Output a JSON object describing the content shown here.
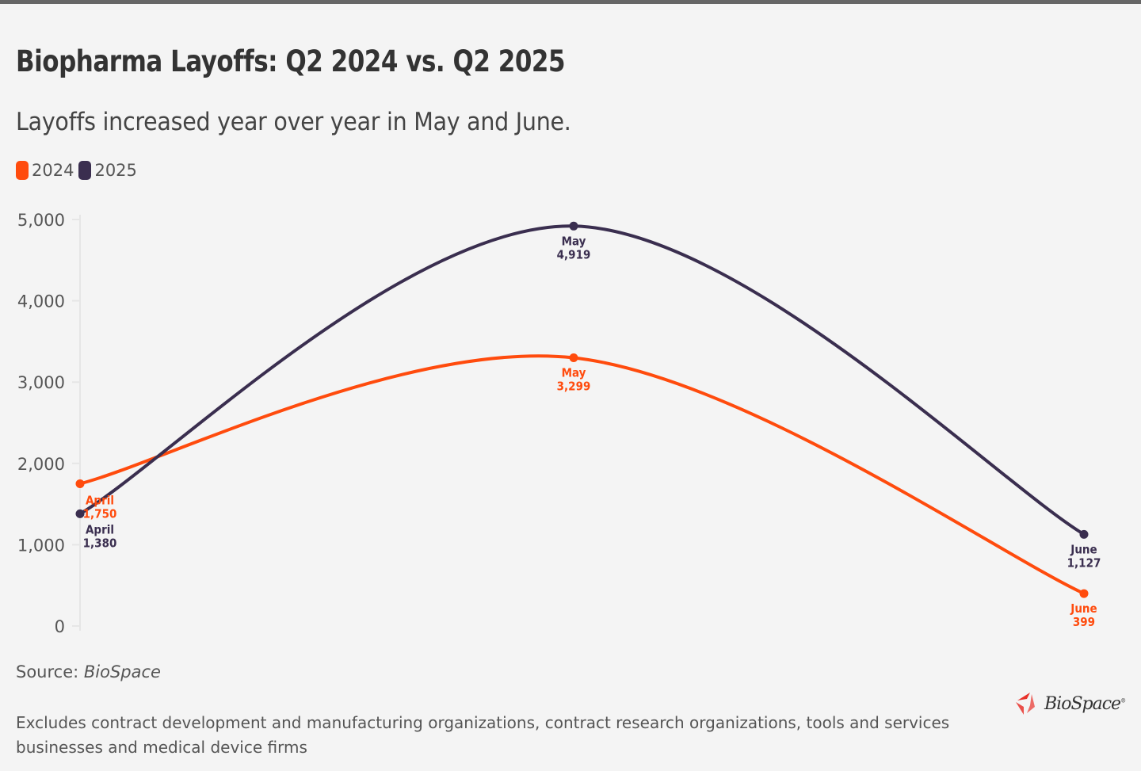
{
  "header": {
    "title": "Biopharma Layoffs: Q2 2024 vs. Q2 2025",
    "subtitle": "Layoffs increased year over year in May and June."
  },
  "legend": [
    {
      "label": "2024",
      "color": "#ff4b0d"
    },
    {
      "label": "2025",
      "color": "#3a2e4f"
    }
  ],
  "chart_data": {
    "type": "line",
    "title": "Biopharma Layoffs: Q2 2024 vs. Q2 2025",
    "subtitle": "Layoffs increased year over year in May and June.",
    "xlabel": "",
    "ylabel": "",
    "categories": [
      "April",
      "May",
      "June"
    ],
    "ylim": [
      0,
      5000
    ],
    "yticks": [
      0,
      1000,
      2000,
      3000,
      4000,
      5000
    ],
    "ytick_labels": [
      "0",
      "1,000",
      "2,000",
      "3,000",
      "4,000",
      "5,000"
    ],
    "legend_position": "top-left",
    "grid": false,
    "series": [
      {
        "name": "2024",
        "color": "#ff4b0d",
        "values": [
          1750,
          3299,
          399
        ],
        "labels": [
          "1,750",
          "3,299",
          "399"
        ]
      },
      {
        "name": "2025",
        "color": "#3a2e4f",
        "values": [
          1380,
          4919,
          1127
        ],
        "labels": [
          "1,380",
          "4,919",
          "1,127"
        ]
      }
    ]
  },
  "footer": {
    "source_prefix": "Source:",
    "source_name": "BioSpace",
    "note": "Excludes contract development and manufacturing organizations, contract research organizations, tools and services businesses and medical device firms",
    "logo_text": "BioSpace",
    "logo_mark": "®"
  }
}
